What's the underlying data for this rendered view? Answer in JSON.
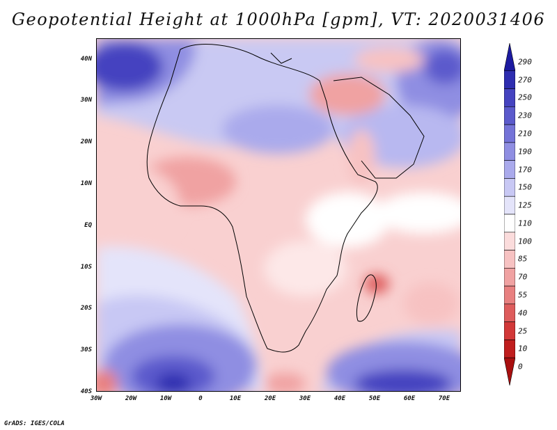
{
  "title": "Geopotential Height at 1000hPa [gpm], VT: 2020031406",
  "credit": "GrADS: IGES/COLA",
  "map": {
    "lat_labels": [
      "40N",
      "30N",
      "20N",
      "10N",
      "EQ",
      "10S",
      "20S",
      "30S",
      "40S"
    ],
    "lon_labels": [
      "30W",
      "20W",
      "10W",
      "0",
      "10E",
      "20E",
      "30E",
      "40E",
      "50E",
      "60E",
      "70E"
    ],
    "extent": {
      "lon_min": -30,
      "lon_max": 75,
      "lat_min": -40,
      "lat_max": 45
    }
  },
  "colorbar": {
    "levels": [
      "290",
      "270",
      "250",
      "230",
      "210",
      "190",
      "170",
      "150",
      "125",
      "110",
      "100",
      "85",
      "70",
      "55",
      "40",
      "25",
      "10",
      "0"
    ],
    "colors": [
      "#1c1aa0",
      "#2e2db0",
      "#4543c0",
      "#5b5acc",
      "#7473d8",
      "#8f8ee2",
      "#aaaaec",
      "#c8c8f4",
      "#e4e4fa",
      "#ffffff",
      "#fbdcdc",
      "#f7c2c2",
      "#f0a2a2",
      "#e88080",
      "#de5c5c",
      "#d23838",
      "#c01e1e",
      "#a80f0f"
    ]
  }
}
